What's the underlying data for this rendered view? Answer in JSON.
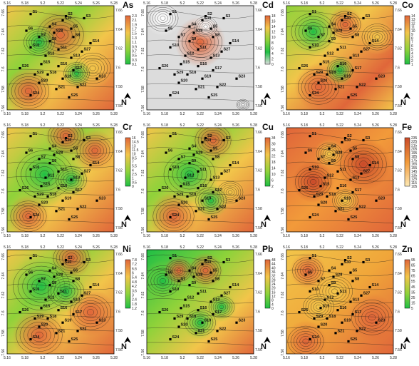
{
  "figure": {
    "panels": [
      {
        "id": "As",
        "element": "As",
        "scheme": "heat",
        "x_ticks": [
          "5.16",
          "5.18",
          "5.2",
          "5.22",
          "5.24",
          "5.26",
          "5.28"
        ],
        "y_ticks": [
          "7.66",
          "7.64",
          "7.62",
          "7.6",
          "7.58",
          "7.56"
        ],
        "colorbar": [
          "2.3",
          "2.1",
          "1.9",
          "1.7",
          "1.5",
          "1.3",
          "1.1",
          "0.9",
          "0.7",
          "0.5",
          "0.3",
          "0.1"
        ]
      },
      {
        "id": "Cd",
        "element": "Cd",
        "scheme": "cd",
        "x_ticks": [
          "5.16",
          "5.18",
          "5.2",
          "5.22",
          "5.24",
          "5.26",
          "5.28"
        ],
        "y_ticks": [
          "7.66",
          "7.64",
          "7.62",
          "7.6",
          "7.58",
          "7.56"
        ],
        "colorbar": [
          "18",
          "16",
          "14",
          "12",
          "10",
          "8",
          "6",
          "4",
          "2",
          "0"
        ]
      },
      {
        "id": "Co",
        "element": "Co",
        "scheme": "co",
        "x_ticks": [
          "5.16",
          "5.18",
          "5.2",
          "5.22",
          "5.24",
          "5.26",
          "5.28"
        ],
        "y_ticks": [
          "7.66",
          "7.64",
          "7.62",
          "7.6",
          "7.58",
          "7.56"
        ],
        "colorbar": [
          "14",
          "13",
          "12",
          "11",
          "10",
          "9",
          "8",
          "7",
          "6",
          "5",
          "4",
          "3",
          "2",
          "1"
        ]
      },
      {
        "id": "Cr",
        "element": "Cr",
        "scheme": "heat",
        "x_ticks": [
          "5.16",
          "5.18",
          "5.2",
          "5.22",
          "5.24",
          "5.26",
          "5.28"
        ],
        "y_ticks": [
          "7.66",
          "7.64",
          "7.62",
          "7.6",
          "7.58",
          "7.56"
        ],
        "colorbar": [
          "16",
          "14.5",
          "13",
          "11.5",
          "10",
          "8.5",
          "7",
          "5.5",
          "4",
          "2.5",
          "1",
          "0.5",
          "0"
        ]
      },
      {
        "id": "Cu",
        "element": "Cu",
        "scheme": "heat",
        "x_ticks": [
          "5.16",
          "5.18",
          "5.2",
          "5.22",
          "5.24",
          "5.26",
          "5.28"
        ],
        "y_ticks": [
          "7.66",
          "7.64",
          "7.62",
          "7.6",
          "7.58",
          "7.56"
        ],
        "colorbar": [
          "34",
          "30",
          "26",
          "22",
          "18",
          "14",
          "10",
          "6",
          "2"
        ]
      },
      {
        "id": "Fe",
        "element": "Fe",
        "scheme": "fe",
        "x_ticks": [
          "5.16",
          "5.18",
          "5.2",
          "5.22",
          "5.24",
          "5.26",
          "5.28"
        ],
        "y_ticks": [
          "7.66",
          "7.64",
          "7.62",
          "7.6",
          "7.58",
          "7.56"
        ],
        "colorbar": [
          "235",
          "225",
          "215",
          "205",
          "195",
          "185",
          "175",
          "165",
          "155",
          "145",
          "135",
          "125",
          "115",
          "105"
        ]
      },
      {
        "id": "Ni",
        "element": "Ni",
        "scheme": "heat",
        "x_ticks": [
          "5.16",
          "5.18",
          "5.2",
          "5.22",
          "5.24",
          "5.26",
          "5.28"
        ],
        "y_ticks": [
          "7.66",
          "7.64",
          "7.62",
          "7.6",
          "7.58",
          "7.56"
        ],
        "colorbar": [
          "7.8",
          "7.2",
          "6.6",
          "6",
          "5.4",
          "4.8",
          "4.2",
          "3.6",
          "3",
          "2.4",
          "1.8",
          "1.2"
        ]
      },
      {
        "id": "Pb",
        "element": "Pb",
        "scheme": "pb",
        "x_ticks": [
          "5.16",
          "5.18",
          "5.2",
          "5.22",
          "5.24",
          "5.26",
          "5.28"
        ],
        "y_ticks": [
          "7.66",
          "7.64",
          "7.62",
          "7.6",
          "7.58",
          "7.56"
        ],
        "colorbar": [
          "48",
          "44",
          "40",
          "36",
          "32",
          "28",
          "24",
          "20",
          "16",
          "12",
          "8",
          "4",
          "0"
        ]
      },
      {
        "id": "Zn",
        "element": "Zn",
        "scheme": "zn",
        "x_ticks": [
          "5.16",
          "5.18",
          "5.2",
          "5.22",
          "5.24",
          "5.26",
          "5.28"
        ],
        "y_ticks": [
          "7.66",
          "7.64",
          "7.62",
          "7.6",
          "7.58",
          "7.56"
        ],
        "colorbar": [
          "95",
          "85",
          "75",
          "65",
          "55",
          "45",
          "35",
          "25",
          "15",
          "5"
        ]
      }
    ],
    "north_label": "N",
    "stations": [
      "S1",
      "S2",
      "S3",
      "S4",
      "S5",
      "S6",
      "S7",
      "S8",
      "S9",
      "S10",
      "S11",
      "S12",
      "S13",
      "S14",
      "S15",
      "S16",
      "S17",
      "S18",
      "S19",
      "S20",
      "S21",
      "S22",
      "S23",
      "S24",
      "S25",
      "S26",
      "S27",
      "S28",
      "S29",
      "S30"
    ],
    "colors": {
      "high": "#e0663a",
      "mid": "#f2c54a",
      "low": "#8fd23a",
      "min": "#1fbf45",
      "gray": "#dcdcdc",
      "white": "#ffffff",
      "contour": "#1a1a1a",
      "text": "#111111"
    }
  }
}
